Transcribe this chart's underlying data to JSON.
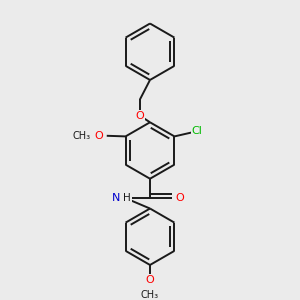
{
  "background_color": "#ebebeb",
  "bond_color": "#1a1a1a",
  "atom_colors": {
    "O": "#ff0000",
    "N": "#0000cd",
    "Cl": "#00bb00",
    "C": "#1a1a1a",
    "H": "#1a1a1a"
  },
  "figsize": [
    3.0,
    3.0
  ],
  "dpi": 100
}
